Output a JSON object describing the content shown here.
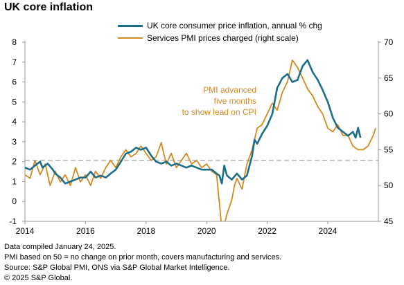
{
  "title": "UK core inflation",
  "legend": [
    {
      "label": "UK core consumer price inflation, annual % chg",
      "color": "#1a6e8a"
    },
    {
      "label": "Services PMI prices charged (right scale)",
      "color": "#d4891f"
    }
  ],
  "annotation": [
    "PMI advanced",
    "five months",
    "to show lead on CPI"
  ],
  "footnotes": [
    "Data compiled January 24, 2025.",
    "PMI based on 50 = no change on prior month, covers manufacturing and services.",
    "Source: S&P Global PMI, ONS via S&P Global Market Intelligence.",
    "© 2025 S&P Global."
  ],
  "chart_data": {
    "type": "line",
    "xlim": [
      2014,
      2025.67
    ],
    "x_ticks": [
      "2014",
      "2016",
      "2018",
      "2020",
      "2022",
      "2024"
    ],
    "y_left": {
      "range": [
        -1,
        8
      ],
      "ticks": [
        "-1",
        "0",
        "1",
        "2",
        "3",
        "4",
        "5",
        "6",
        "7",
        "8"
      ]
    },
    "y_right": {
      "range": [
        45,
        70
      ],
      "ticks": [
        "45",
        "50",
        "55",
        "60",
        "65",
        "70"
      ]
    },
    "reference_line": {
      "axis": "right",
      "value": 53.5,
      "style": "dashed"
    },
    "series": [
      {
        "axis": "left",
        "color": "#1a6e8a",
        "points": [
          [
            2014.0,
            1.7
          ],
          [
            2014.17,
            1.6
          ],
          [
            2014.33,
            1.8
          ],
          [
            2014.5,
            2.0
          ],
          [
            2014.58,
            1.7
          ],
          [
            2014.75,
            1.9
          ],
          [
            2014.92,
            1.6
          ],
          [
            2015.0,
            1.4
          ],
          [
            2015.17,
            1.2
          ],
          [
            2015.33,
            0.9
          ],
          [
            2015.5,
            1.0
          ],
          [
            2015.67,
            1.1
          ],
          [
            2015.83,
            1.2
          ],
          [
            2016.0,
            1.2
          ],
          [
            2016.17,
            1.5
          ],
          [
            2016.33,
            1.2
          ],
          [
            2016.5,
            1.3
          ],
          [
            2016.67,
            1.2
          ],
          [
            2016.83,
            1.4
          ],
          [
            2017.0,
            1.6
          ],
          [
            2017.17,
            2.0
          ],
          [
            2017.33,
            2.4
          ],
          [
            2017.5,
            2.5
          ],
          [
            2017.67,
            2.7
          ],
          [
            2017.83,
            2.6
          ],
          [
            2018.0,
            2.7
          ],
          [
            2018.17,
            2.3
          ],
          [
            2018.33,
            2.0
          ],
          [
            2018.5,
            1.9
          ],
          [
            2018.67,
            2.0
          ],
          [
            2018.83,
            1.8
          ],
          [
            2019.0,
            1.9
          ],
          [
            2019.17,
            1.8
          ],
          [
            2019.33,
            1.7
          ],
          [
            2019.5,
            1.8
          ],
          [
            2019.67,
            1.7
          ],
          [
            2019.83,
            1.6
          ],
          [
            2020.0,
            1.6
          ],
          [
            2020.17,
            1.6
          ],
          [
            2020.33,
            1.4
          ],
          [
            2020.42,
            1.3
          ],
          [
            2020.5,
            0.9
          ],
          [
            2020.58,
            1.8
          ],
          [
            2020.67,
            1.3
          ],
          [
            2020.83,
            1.1
          ],
          [
            2021.0,
            1.4
          ],
          [
            2021.17,
            1.1
          ],
          [
            2021.33,
            1.3
          ],
          [
            2021.5,
            2.3
          ],
          [
            2021.58,
            3.1
          ],
          [
            2021.67,
            2.9
          ],
          [
            2021.83,
            3.4
          ],
          [
            2022.0,
            3.8
          ],
          [
            2022.17,
            4.4
          ],
          [
            2022.33,
            5.7
          ],
          [
            2022.5,
            6.2
          ],
          [
            2022.67,
            6.4
          ],
          [
            2022.83,
            6.0
          ],
          [
            2023.0,
            6.1
          ],
          [
            2023.17,
            6.8
          ],
          [
            2023.33,
            7.1
          ],
          [
            2023.5,
            6.5
          ],
          [
            2023.67,
            6.1
          ],
          [
            2023.83,
            5.6
          ],
          [
            2024.0,
            5.0
          ],
          [
            2024.17,
            4.2
          ],
          [
            2024.33,
            3.7
          ],
          [
            2024.5,
            3.5
          ],
          [
            2024.67,
            3.3
          ],
          [
            2024.83,
            3.5
          ],
          [
            2024.92,
            3.2
          ],
          [
            2025.0,
            3.7
          ],
          [
            2025.08,
            3.2
          ]
        ]
      },
      {
        "axis": "right",
        "color": "#d4891f",
        "points": [
          [
            2014.0,
            51.5
          ],
          [
            2014.17,
            51.0
          ],
          [
            2014.33,
            53.5
          ],
          [
            2014.5,
            51.5
          ],
          [
            2014.67,
            53.0
          ],
          [
            2014.83,
            50.0
          ],
          [
            2015.0,
            52.0
          ],
          [
            2015.17,
            50.5
          ],
          [
            2015.33,
            51.5
          ],
          [
            2015.5,
            50.0
          ],
          [
            2015.67,
            52.5
          ],
          [
            2015.83,
            50.5
          ],
          [
            2016.0,
            51.5
          ],
          [
            2016.17,
            50.0
          ],
          [
            2016.33,
            52.0
          ],
          [
            2016.5,
            51.0
          ],
          [
            2016.67,
            52.5
          ],
          [
            2016.83,
            53.5
          ],
          [
            2017.0,
            52.5
          ],
          [
            2017.17,
            54.0
          ],
          [
            2017.33,
            55.0
          ],
          [
            2017.5,
            54.0
          ],
          [
            2017.67,
            54.5
          ],
          [
            2017.83,
            55.5
          ],
          [
            2018.0,
            54.5
          ],
          [
            2018.17,
            53.5
          ],
          [
            2018.33,
            54.0
          ],
          [
            2018.5,
            56.0
          ],
          [
            2018.58,
            54.5
          ],
          [
            2018.67,
            53.0
          ],
          [
            2018.83,
            54.5
          ],
          [
            2019.0,
            52.5
          ],
          [
            2019.17,
            53.5
          ],
          [
            2019.33,
            54.5
          ],
          [
            2019.5,
            53.0
          ],
          [
            2019.67,
            53.5
          ],
          [
            2019.83,
            52.5
          ],
          [
            2020.0,
            53.0
          ],
          [
            2020.17,
            52.0
          ],
          [
            2020.33,
            51.5
          ],
          [
            2020.5,
            44.0
          ],
          [
            2020.58,
            44.5
          ],
          [
            2020.67,
            46.0
          ],
          [
            2020.83,
            48.0
          ],
          [
            2020.92,
            50.0
          ],
          [
            2021.0,
            51.0
          ],
          [
            2021.17,
            49.5
          ],
          [
            2021.33,
            53.0
          ],
          [
            2021.5,
            55.0
          ],
          [
            2021.67,
            58.0
          ],
          [
            2021.83,
            58.5
          ],
          [
            2022.0,
            60.0
          ],
          [
            2022.17,
            61.5
          ],
          [
            2022.33,
            60.5
          ],
          [
            2022.5,
            63.0
          ],
          [
            2022.67,
            64.5
          ],
          [
            2022.83,
            67.5
          ],
          [
            2023.0,
            66.5
          ],
          [
            2023.17,
            65.0
          ],
          [
            2023.33,
            63.5
          ],
          [
            2023.5,
            62.5
          ],
          [
            2023.67,
            61.0
          ],
          [
            2023.83,
            60.0
          ],
          [
            2024.0,
            58.0
          ],
          [
            2024.17,
            57.5
          ],
          [
            2024.33,
            58.5
          ],
          [
            2024.5,
            57.0
          ],
          [
            2024.67,
            57.0
          ],
          [
            2024.83,
            55.5
          ],
          [
            2025.0,
            55.0
          ],
          [
            2025.17,
            55.0
          ],
          [
            2025.33,
            55.5
          ],
          [
            2025.5,
            57.0
          ],
          [
            2025.58,
            58.0
          ]
        ]
      }
    ]
  }
}
